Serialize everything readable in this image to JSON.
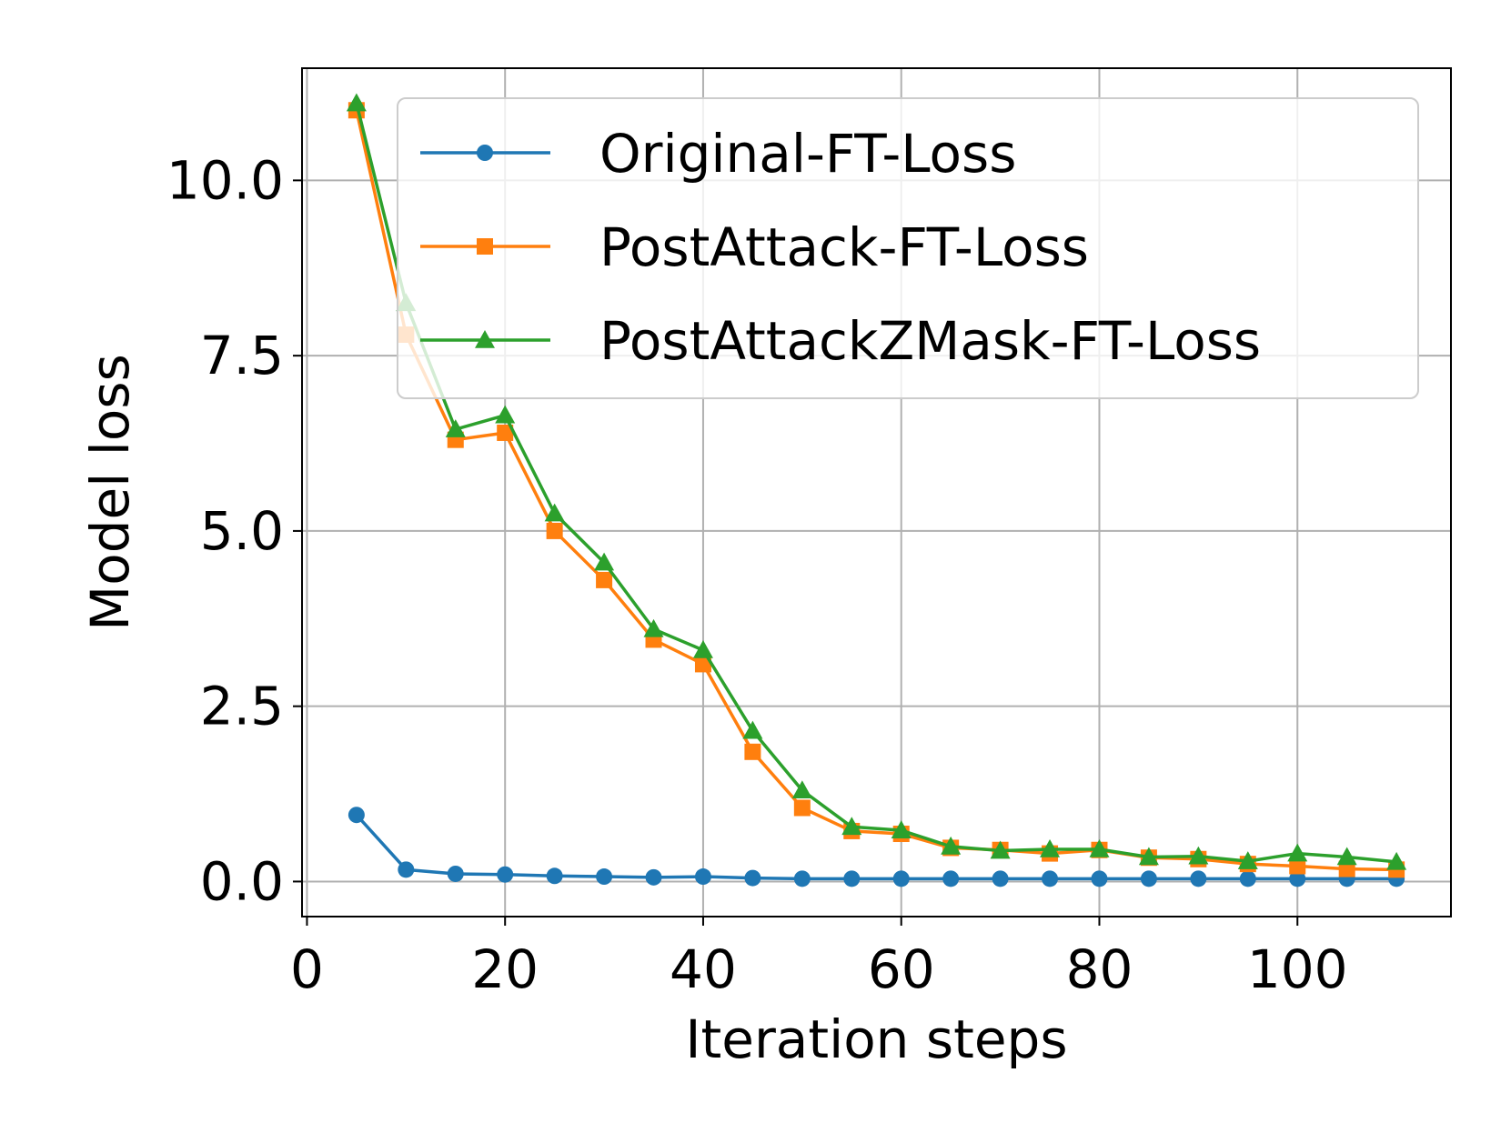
{
  "chart_data": {
    "type": "line",
    "title": "",
    "xlabel": "Iteration steps",
    "ylabel": "Model loss",
    "xlim": [
      -0.5,
      115.5
    ],
    "ylim": [
      -0.5,
      11.6
    ],
    "xticks": [
      0,
      20,
      40,
      60,
      80,
      100
    ],
    "xtick_labels": [
      "0",
      "20",
      "40",
      "60",
      "80",
      "100"
    ],
    "yticks": [
      0.0,
      2.5,
      5.0,
      7.5,
      10.0
    ],
    "ytick_labels": [
      "0.0",
      "2.5",
      "5.0",
      "7.5",
      "10.0"
    ],
    "grid": true,
    "legend_position": "top-right",
    "x": [
      5,
      10,
      15,
      20,
      25,
      30,
      35,
      40,
      45,
      50,
      55,
      60,
      65,
      70,
      75,
      80,
      85,
      90,
      95,
      100,
      105,
      110
    ],
    "series": [
      {
        "name": "Original-FT-Loss",
        "color": "#1f77b4",
        "marker": "circle",
        "values": [
          0.95,
          0.17,
          0.11,
          0.1,
          0.08,
          0.07,
          0.06,
          0.07,
          0.05,
          0.04,
          0.04,
          0.04,
          0.04,
          0.04,
          0.04,
          0.04,
          0.04,
          0.04,
          0.04,
          0.04,
          0.04,
          0.04
        ]
      },
      {
        "name": "PostAttack-FT-Loss",
        "color": "#ff7f0e",
        "marker": "square",
        "values": [
          11.0,
          7.8,
          6.3,
          6.4,
          5.0,
          4.3,
          3.45,
          3.1,
          1.85,
          1.05,
          0.72,
          0.68,
          0.48,
          0.45,
          0.4,
          0.45,
          0.34,
          0.32,
          0.25,
          0.22,
          0.18,
          0.17
        ]
      },
      {
        "name": "PostAttackZMask-FT-Loss",
        "color": "#2ca02c",
        "marker": "triangle",
        "values": [
          11.1,
          8.25,
          6.45,
          6.65,
          5.25,
          4.55,
          3.6,
          3.3,
          2.15,
          1.3,
          0.78,
          0.73,
          0.5,
          0.44,
          0.46,
          0.46,
          0.35,
          0.36,
          0.29,
          0.4,
          0.35,
          0.28
        ]
      }
    ]
  }
}
